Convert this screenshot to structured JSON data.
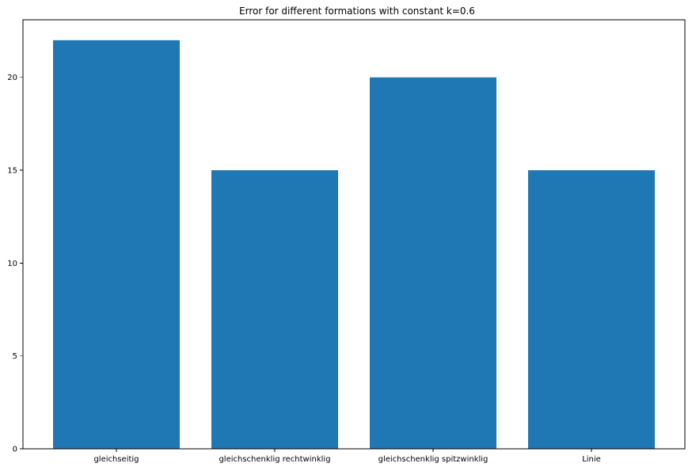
{
  "chart_data": {
    "type": "bar",
    "title": "Error for different formations with constant k=0.6",
    "xlabel": "",
    "ylabel": "",
    "categories": [
      "gleichseitig",
      "gleichschenklig rechtwinklig",
      "gleichschenklig spitzwinklig",
      "Linie"
    ],
    "values": [
      22,
      15,
      20,
      15
    ],
    "ylim": [
      0,
      23.1
    ],
    "yticks": [
      0,
      5,
      10,
      15,
      20
    ],
    "grid": false,
    "bar_color": "#1f77b4"
  }
}
